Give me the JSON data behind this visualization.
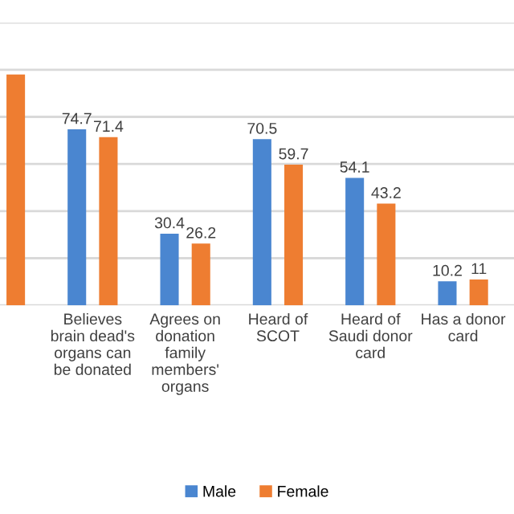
{
  "chart_data": {
    "type": "bar",
    "categories": [
      null,
      "Believes\nbrain dead's\norgans can\nbe donated",
      "Agrees on\ndonation\nfamily\nmembers'\norgans",
      "Heard of\nSCOT",
      "Heard of\nSaudi donor\ncard",
      "Has a donor\ncard"
    ],
    "series": [
      {
        "name": "Male",
        "color": "#4a86d0",
        "values": [
          null,
          74.7,
          30.4,
          70.5,
          54.1,
          10.2
        ]
      },
      {
        "name": "Female",
        "color": "#ee7d31",
        "values": [
          98,
          71.4,
          26.2,
          59.7,
          43.2,
          11
        ],
        "value_labels": [
          null,
          "71.4",
          "26.2",
          "59.7",
          "43.2",
          "11"
        ]
      }
    ],
    "ylim": [
      0,
      120
    ],
    "yticks": [
      {
        "value": 0,
        "label": null
      },
      {
        "value": 20,
        "label": null
      },
      {
        "value": 40,
        "label": null
      },
      {
        "value": 60,
        "label": null
      },
      {
        "value": 80,
        "label": null
      },
      {
        "value": 100,
        "label": null
      },
      {
        "value": 120,
        "label": null
      }
    ],
    "grid": "y",
    "data_labels": true,
    "legend": "bottom"
  }
}
